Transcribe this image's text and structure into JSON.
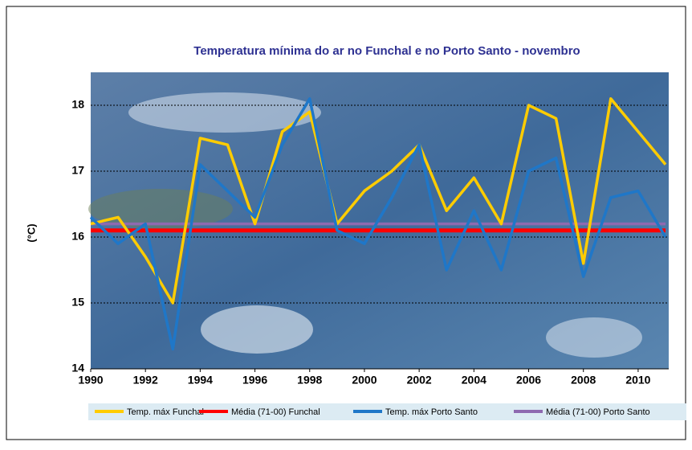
{
  "chart_data": {
    "type": "line",
    "title": "Temperatura mínima do ar no Funchal e no Porto Santo - novembro",
    "y_label": "(°C)",
    "x": [
      1990,
      1991,
      1992,
      1993,
      1994,
      1995,
      1996,
      1997,
      1998,
      1999,
      2000,
      2001,
      2002,
      2003,
      2004,
      2005,
      2006,
      2007,
      2008,
      2009,
      2010,
      2011
    ],
    "series": [
      {
        "name": "Temp. máx Funchal",
        "color": "#ffcc00",
        "values": [
          16.2,
          16.3,
          15.7,
          15.0,
          17.5,
          17.4,
          16.2,
          17.6,
          17.9,
          16.2,
          16.7,
          17.0,
          17.4,
          16.4,
          16.9,
          16.2,
          18.0,
          17.8,
          15.6,
          18.1,
          17.6,
          17.1
        ]
      },
      {
        "name": "Média (71-00) Funchal",
        "color": "#ff0000",
        "values": [
          16.1,
          16.1,
          16.1,
          16.1,
          16.1,
          16.1,
          16.1,
          16.1,
          16.1,
          16.1,
          16.1,
          16.1,
          16.1,
          16.1,
          16.1,
          16.1,
          16.1,
          16.1,
          16.1,
          16.1,
          16.1,
          16.1
        ]
      },
      {
        "name": "Temp. máx Porto Santo",
        "color": "#1f77c8",
        "values": [
          16.3,
          15.9,
          16.2,
          14.3,
          17.1,
          16.7,
          16.3,
          17.4,
          18.1,
          16.1,
          15.9,
          16.6,
          17.4,
          15.5,
          16.4,
          15.5,
          17.0,
          17.2,
          15.4,
          16.6,
          16.7,
          16.0
        ]
      },
      {
        "name": "Média (71-00) Porto Santo",
        "color": "#8e6ab0",
        "values": [
          16.2,
          16.2,
          16.2,
          16.2,
          16.2,
          16.2,
          16.2,
          16.2,
          16.2,
          16.2,
          16.2,
          16.2,
          16.2,
          16.2,
          16.2,
          16.2,
          16.2,
          16.2,
          16.2,
          16.2,
          16.2,
          16.2
        ]
      }
    ],
    "xlim": [
      1990,
      2011
    ],
    "xticks": [
      1990,
      1992,
      1994,
      1996,
      1998,
      2000,
      2002,
      2004,
      2006,
      2008,
      2010
    ],
    "ylim": [
      14,
      18.5
    ],
    "yticks": [
      14,
      15,
      16,
      17,
      18
    ],
    "grid": true
  }
}
